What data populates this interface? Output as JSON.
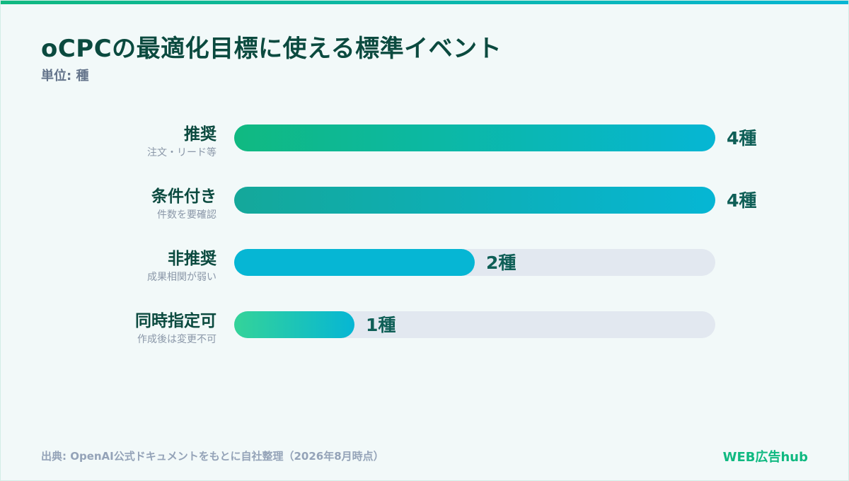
{
  "title": "oCPCの最適化目標に使える標準イベント",
  "unit_label": "単位: 種",
  "source": "出典: OpenAI公式ドキュメントをもとに自社整理（2026年8月時点）",
  "brand": "WEB広告hub",
  "colors": {
    "accent_green": "#10b981",
    "accent_teal": "#14b8a6",
    "accent_cyan": "#06b6d4",
    "accent_light_green": "#34d399",
    "track": "#e2e8f0",
    "title": "#0b4a3f",
    "value_text": "#0f5f57"
  },
  "chart_data": {
    "type": "bar",
    "orientation": "horizontal",
    "categories": [
      "推奨",
      "条件付き",
      "非推奨",
      "同時指定可"
    ],
    "subtitles": [
      "注文・リード等",
      "件数を要確認",
      "成果相関が弱い",
      "作成後は変更不可"
    ],
    "values": [
      4,
      4,
      2,
      1
    ],
    "value_labels": [
      "4種",
      "4種",
      "2種",
      "1種"
    ],
    "xlim": [
      0,
      4
    ],
    "grid": false,
    "legend": "none",
    "bar_styles": [
      "green-to-cyan",
      "teal-to-cyan",
      "cyan",
      "lightgreen-to-cyan"
    ]
  }
}
